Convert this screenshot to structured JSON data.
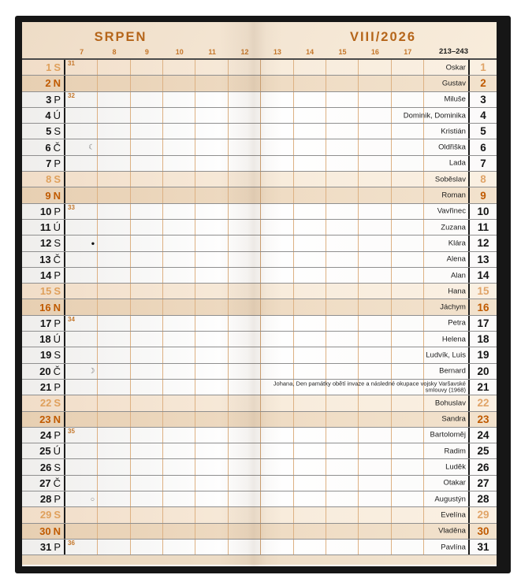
{
  "header": {
    "month_name": "SRPEN",
    "month_year": "VIII/2026",
    "day_range": "213–243",
    "hours_left": [
      "7",
      "8",
      "9",
      "10",
      "11",
      "12"
    ],
    "hours_right": [
      "13",
      "14",
      "15",
      "16",
      "17"
    ]
  },
  "colors": {
    "title_accent": "#b5651a",
    "hour_label": "#c4762a",
    "saturday_text": "#dfa05c",
    "sunday_text": "#c05a00",
    "saturday_row_bg": "#f8ecdc",
    "sunday_row_bg": "#efdcc4",
    "header_band_bg": "#f3e4d1",
    "gridline": "#ddb183"
  },
  "moon_glyphs": {
    "new": "●",
    "full": "○",
    "first-quarter": "☽",
    "last-quarter": "☾"
  },
  "days": [
    {
      "num": 1,
      "dow": "S",
      "type": "sat",
      "week": "31",
      "name": "Oskar"
    },
    {
      "num": 2,
      "dow": "N",
      "type": "sun",
      "name": "Gustav"
    },
    {
      "num": 3,
      "dow": "P",
      "type": "wd",
      "week": "32",
      "name": "Miluše"
    },
    {
      "num": 4,
      "dow": "Ú",
      "type": "wd",
      "name": "Dominik, Dominika"
    },
    {
      "num": 5,
      "dow": "S",
      "type": "wd",
      "name": "Kristián"
    },
    {
      "num": 6,
      "dow": "Č",
      "type": "wd",
      "name": "Oldřiška",
      "moon": "last-quarter"
    },
    {
      "num": 7,
      "dow": "P",
      "type": "wd",
      "name": "Lada"
    },
    {
      "num": 8,
      "dow": "S",
      "type": "sat",
      "name": "Soběslav"
    },
    {
      "num": 9,
      "dow": "N",
      "type": "sun",
      "name": "Roman"
    },
    {
      "num": 10,
      "dow": "P",
      "type": "wd",
      "week": "33",
      "name": "Vavřinec"
    },
    {
      "num": 11,
      "dow": "Ú",
      "type": "wd",
      "name": "Zuzana"
    },
    {
      "num": 12,
      "dow": "S",
      "type": "wd",
      "name": "Klára",
      "moon": "new"
    },
    {
      "num": 13,
      "dow": "Č",
      "type": "wd",
      "name": "Alena"
    },
    {
      "num": 14,
      "dow": "P",
      "type": "wd",
      "name": "Alan"
    },
    {
      "num": 15,
      "dow": "S",
      "type": "sat",
      "name": "Hana"
    },
    {
      "num": 16,
      "dow": "N",
      "type": "sun",
      "name": "Jáchym"
    },
    {
      "num": 17,
      "dow": "P",
      "type": "wd",
      "week": "34",
      "name": "Petra"
    },
    {
      "num": 18,
      "dow": "Ú",
      "type": "wd",
      "name": "Helena"
    },
    {
      "num": 19,
      "dow": "S",
      "type": "wd",
      "name": "Ludvík, Luis"
    },
    {
      "num": 20,
      "dow": "Č",
      "type": "wd",
      "name": "Bernard",
      "moon": "first-quarter"
    },
    {
      "num": 21,
      "dow": "P",
      "type": "wd",
      "name": "Johana",
      "note": "Den památky obětí invaze a následné okupace vojsky Varšavské smlouvy (1968)"
    },
    {
      "num": 22,
      "dow": "S",
      "type": "sat",
      "name": "Bohuslav"
    },
    {
      "num": 23,
      "dow": "N",
      "type": "sun",
      "name": "Sandra"
    },
    {
      "num": 24,
      "dow": "P",
      "type": "wd",
      "week": "35",
      "name": "Bartoloměj"
    },
    {
      "num": 25,
      "dow": "Ú",
      "type": "wd",
      "name": "Radim"
    },
    {
      "num": 26,
      "dow": "S",
      "type": "wd",
      "name": "Luděk"
    },
    {
      "num": 27,
      "dow": "Č",
      "type": "wd",
      "name": "Otakar"
    },
    {
      "num": 28,
      "dow": "P",
      "type": "wd",
      "name": "Augustýn",
      "moon": "full"
    },
    {
      "num": 29,
      "dow": "S",
      "type": "sat",
      "name": "Evelína"
    },
    {
      "num": 30,
      "dow": "N",
      "type": "sun",
      "name": "Vladěna"
    },
    {
      "num": 31,
      "dow": "P",
      "type": "wd",
      "week": "36",
      "name": "Pavlína"
    }
  ]
}
